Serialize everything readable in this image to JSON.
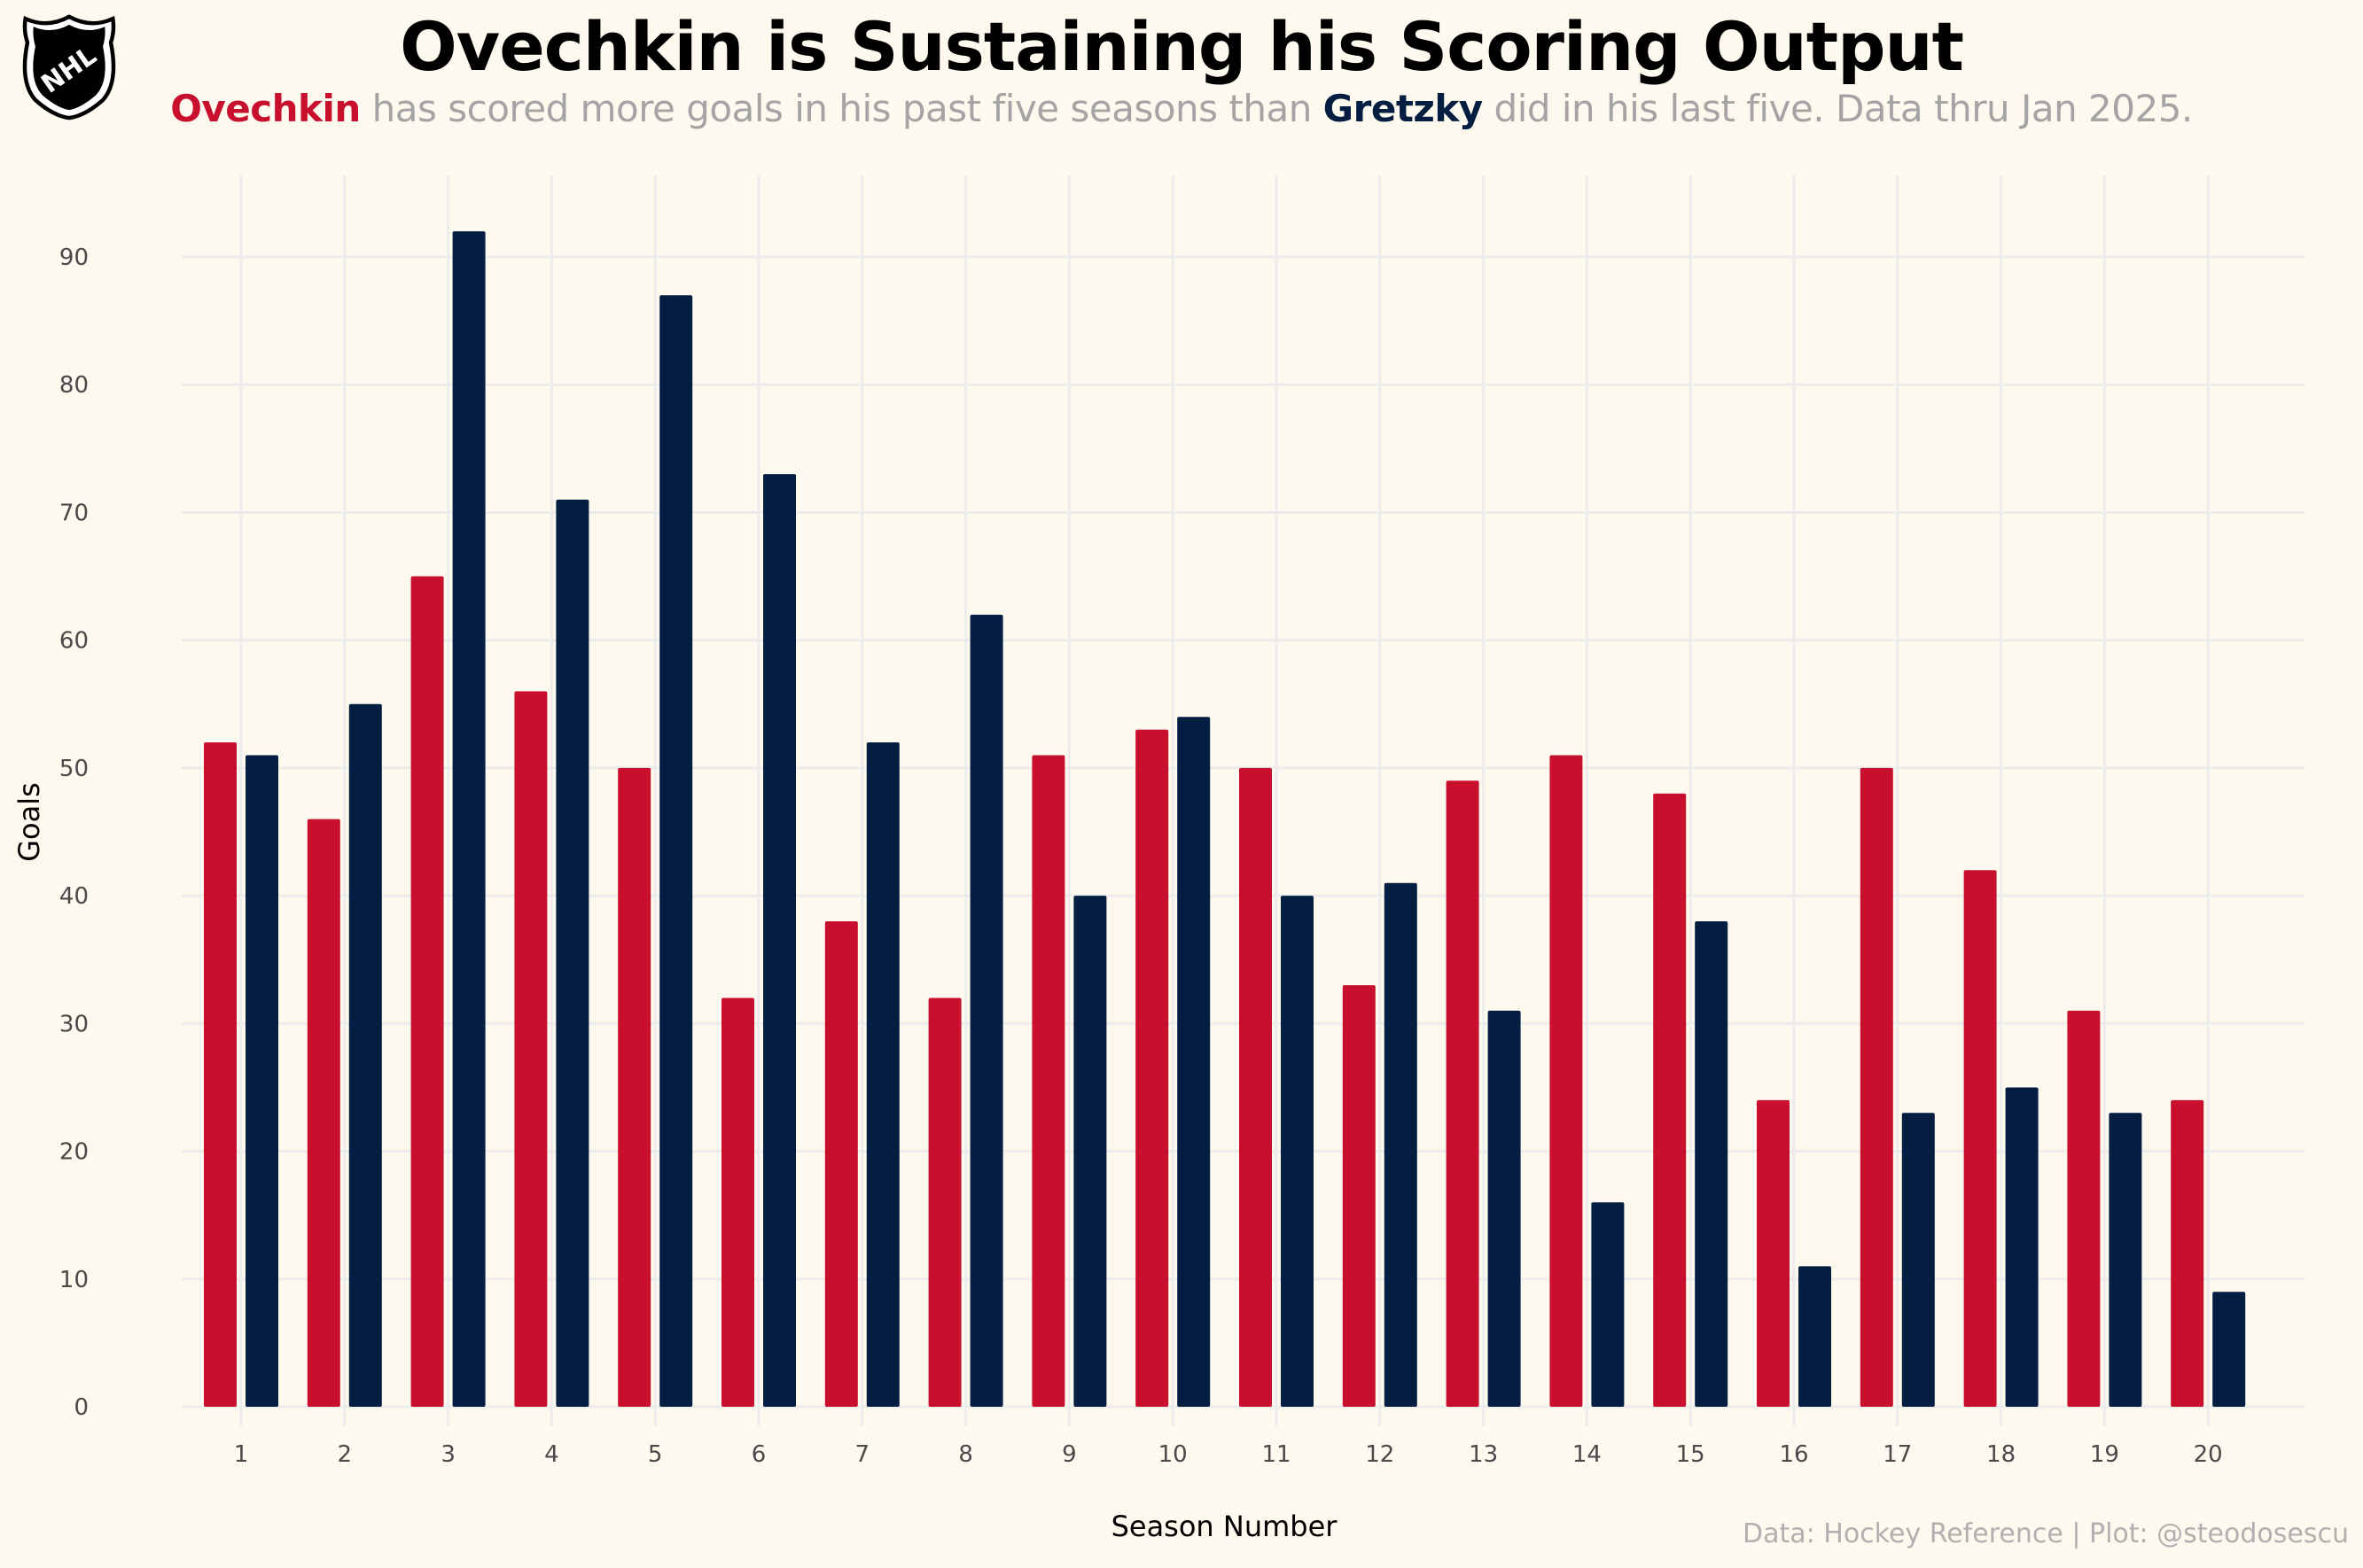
{
  "title": "Ovechkin is Sustaining his Scoring Output",
  "subtitle": {
    "player1": "Ovechkin",
    "part1": " has scored more goals in his past five seasons than ",
    "player2": "Gretzky",
    "part2": " did in his last five. Data thru Jan 2025."
  },
  "caption": "Data: Hockey Reference | Plot: @steodosescu",
  "logo": {
    "text": "NHL",
    "icon": "nhl-shield-logo"
  },
  "colors": {
    "ovechkin": "#C8102E",
    "gretzky": "#041E42",
    "background": "#FDF9EE",
    "grid": "#ECECEC"
  },
  "chart_data": {
    "type": "bar",
    "xlabel": "Season Number",
    "ylabel": "Goals",
    "ylim": [
      0,
      96
    ],
    "yticks": [
      0,
      10,
      20,
      30,
      40,
      50,
      60,
      70,
      80,
      90
    ],
    "categories": [
      "1",
      "2",
      "3",
      "4",
      "5",
      "6",
      "7",
      "8",
      "9",
      "10",
      "11",
      "12",
      "13",
      "14",
      "15",
      "16",
      "17",
      "18",
      "19",
      "20"
    ],
    "grid": true,
    "legend": "none",
    "series": [
      {
        "name": "Ovechkin",
        "color": "#C8102E",
        "values": [
          52,
          46,
          65,
          56,
          50,
          32,
          38,
          32,
          51,
          53,
          50,
          33,
          49,
          51,
          48,
          24,
          50,
          42,
          31,
          24
        ]
      },
      {
        "name": "Gretzky",
        "color": "#041E42",
        "values": [
          51,
          55,
          92,
          71,
          87,
          73,
          52,
          62,
          40,
          54,
          40,
          41,
          31,
          16,
          38,
          11,
          23,
          25,
          23,
          9
        ]
      }
    ]
  }
}
